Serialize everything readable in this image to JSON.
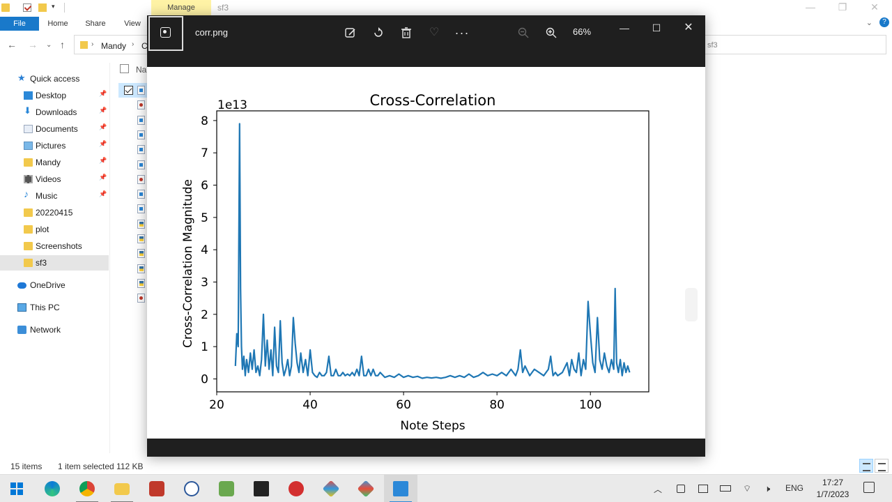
{
  "explorer": {
    "context_tab": "Manage",
    "window_title": "sf3",
    "ribbon_tabs": [
      "File",
      "Home",
      "Share",
      "View"
    ],
    "address": {
      "crumb1": "Mandy",
      "crumb2": "Co",
      "tail": "sf3"
    },
    "nav_items": [
      {
        "label": "Quick access",
        "icon": "star-icon"
      },
      {
        "label": "Desktop",
        "icon": "desktop-icon",
        "pinned": true
      },
      {
        "label": "Downloads",
        "icon": "download-icon",
        "pinned": true
      },
      {
        "label": "Documents",
        "icon": "documents-icon",
        "pinned": true
      },
      {
        "label": "Pictures",
        "icon": "pictures-icon",
        "pinned": true
      },
      {
        "label": "Mandy",
        "icon": "folder-icon",
        "pinned": true
      },
      {
        "label": "Videos",
        "icon": "videos-icon",
        "pinned": true
      },
      {
        "label": "Music",
        "icon": "music-icon",
        "pinned": true
      },
      {
        "label": "20220415",
        "icon": "folder-icon"
      },
      {
        "label": "plot",
        "icon": "folder-icon"
      },
      {
        "label": "Screenshots",
        "icon": "folder-icon"
      },
      {
        "label": "sf3",
        "icon": "folder-icon",
        "selected": true
      },
      {
        "label": "OneDrive",
        "icon": "onedrive-icon"
      },
      {
        "label": "This PC",
        "icon": "this-pc-icon"
      },
      {
        "label": "Network",
        "icon": "network-icon"
      }
    ],
    "column_header": "Nar",
    "file_icons": [
      "png",
      "rec",
      "png",
      "png",
      "png",
      "png",
      "rec",
      "png",
      "png",
      "py",
      "py",
      "py",
      "py",
      "py",
      "rec"
    ],
    "status": {
      "items": "15 items",
      "selected": "1 item selected  112 KB"
    }
  },
  "photos": {
    "filename": "corr.png",
    "zoom": "66%",
    "toolbar_icons": [
      "edit-image-icon",
      "rotate-icon",
      "delete-icon",
      "favorite-icon",
      "more-icon",
      "zoom-out-icon",
      "zoom-in-icon"
    ]
  },
  "chart_data": {
    "type": "line",
    "title": "Cross-Correlation",
    "xlabel": "Note Steps",
    "ylabel": "Cross-Correlation Magnitude",
    "offset_label": "1e13",
    "xlim": [
      20,
      112.5
    ],
    "ylim": [
      -0.4,
      8.3
    ],
    "xticks": [
      20,
      40,
      60,
      80,
      100
    ],
    "yticks": [
      0,
      1,
      2,
      3,
      4,
      5,
      6,
      7,
      8
    ],
    "grid": false,
    "color": "#1f77b4",
    "series": [
      {
        "x": [
          24.0,
          24.3,
          24.6,
          24.9,
          25.1,
          25.3,
          25.5,
          25.8,
          26.1,
          26.4,
          26.8,
          27.2,
          27.6,
          28.0,
          28.4,
          28.8,
          29.2,
          29.6,
          30.0,
          30.4,
          30.8,
          31.2,
          31.6,
          32.0,
          32.4,
          32.8,
          33.2,
          33.6,
          34.0,
          34.4,
          34.8,
          35.2,
          35.6,
          36.0,
          36.4,
          36.8,
          37.2,
          37.6,
          38.0,
          38.5,
          39.0,
          39.5,
          40.0,
          40.5,
          41.0,
          41.5,
          42.0,
          42.5,
          43.0,
          43.5,
          44.0,
          44.5,
          45.0,
          45.5,
          46.0,
          46.5,
          47.0,
          47.5,
          48.0,
          48.5,
          49.0,
          49.5,
          50.0,
          50.5,
          51.0,
          51.5,
          52.0,
          52.5,
          53.0,
          53.5,
          54.0,
          54.5,
          55.0,
          56.0,
          57.0,
          58.0,
          59.0,
          60.0,
          61.0,
          62.0,
          63.0,
          64.0,
          65.0,
          66.0,
          67.0,
          68.0,
          69.0,
          70.0,
          71.0,
          72.0,
          73.0,
          74.0,
          75.0,
          76.0,
          77.0,
          78.0,
          79.0,
          80.0,
          81.0,
          82.0,
          83.0,
          84.0,
          84.5,
          85.0,
          85.5,
          86.0,
          87.0,
          88.0,
          89.0,
          90.0,
          91.0,
          91.5,
          92.0,
          92.5,
          93.0,
          94.0,
          95.0,
          95.5,
          96.0,
          96.5,
          97.0,
          97.5,
          98.0,
          98.5,
          99.0,
          99.5,
          100.0,
          100.5,
          101.0,
          101.5,
          102.0,
          102.5,
          103.0,
          103.5,
          104.0,
          104.5,
          105.0,
          105.3,
          105.6,
          106.0,
          106.4,
          106.8,
          107.2,
          107.6,
          108.0,
          108.4
        ],
        "y": [
          0.4,
          1.4,
          1.0,
          7.9,
          2.8,
          1.0,
          0.3,
          0.7,
          0.1,
          0.6,
          0.2,
          0.8,
          0.3,
          0.9,
          0.2,
          0.4,
          0.1,
          0.6,
          2.0,
          0.4,
          1.2,
          0.3,
          0.9,
          0.1,
          1.6,
          0.4,
          0.2,
          1.8,
          0.5,
          0.1,
          0.3,
          0.6,
          0.1,
          0.4,
          1.9,
          1.1,
          0.5,
          0.2,
          0.8,
          0.2,
          0.6,
          0.1,
          0.9,
          0.2,
          0.1,
          0.05,
          0.2,
          0.1,
          0.1,
          0.2,
          0.7,
          0.1,
          0.1,
          0.3,
          0.1,
          0.1,
          0.2,
          0.1,
          0.15,
          0.1,
          0.2,
          0.1,
          0.3,
          0.1,
          0.7,
          0.1,
          0.1,
          0.3,
          0.1,
          0.3,
          0.1,
          0.1,
          0.2,
          0.05,
          0.1,
          0.05,
          0.15,
          0.05,
          0.1,
          0.05,
          0.08,
          0.02,
          0.05,
          0.03,
          0.05,
          0.02,
          0.05,
          0.1,
          0.05,
          0.1,
          0.05,
          0.15,
          0.05,
          0.1,
          0.2,
          0.1,
          0.15,
          0.1,
          0.2,
          0.1,
          0.3,
          0.1,
          0.3,
          0.9,
          0.2,
          0.4,
          0.1,
          0.3,
          0.2,
          0.1,
          0.3,
          0.7,
          0.1,
          0.2,
          0.1,
          0.2,
          0.5,
          0.1,
          0.6,
          0.3,
          0.2,
          0.8,
          0.1,
          0.6,
          0.3,
          2.4,
          1.4,
          0.5,
          0.2,
          1.9,
          0.6,
          0.3,
          0.8,
          0.4,
          0.2,
          0.6,
          0.3,
          2.8,
          0.5,
          0.2,
          0.6,
          0.1,
          0.5,
          0.2,
          0.4,
          0.2
        ]
      }
    ]
  },
  "taskbar": {
    "apps": [
      "windows-start-icon",
      "edge-icon",
      "chrome-icon",
      "file-explorer-icon",
      "app-red-icon",
      "word-icon",
      "app-green-icon",
      "terminal-icon",
      "app-red-circle-icon",
      "app-diamond-icon",
      "app-diamond2-icon",
      "photos-icon"
    ],
    "lang": "ENG",
    "time": "17:27",
    "date": "1/7/2023"
  }
}
